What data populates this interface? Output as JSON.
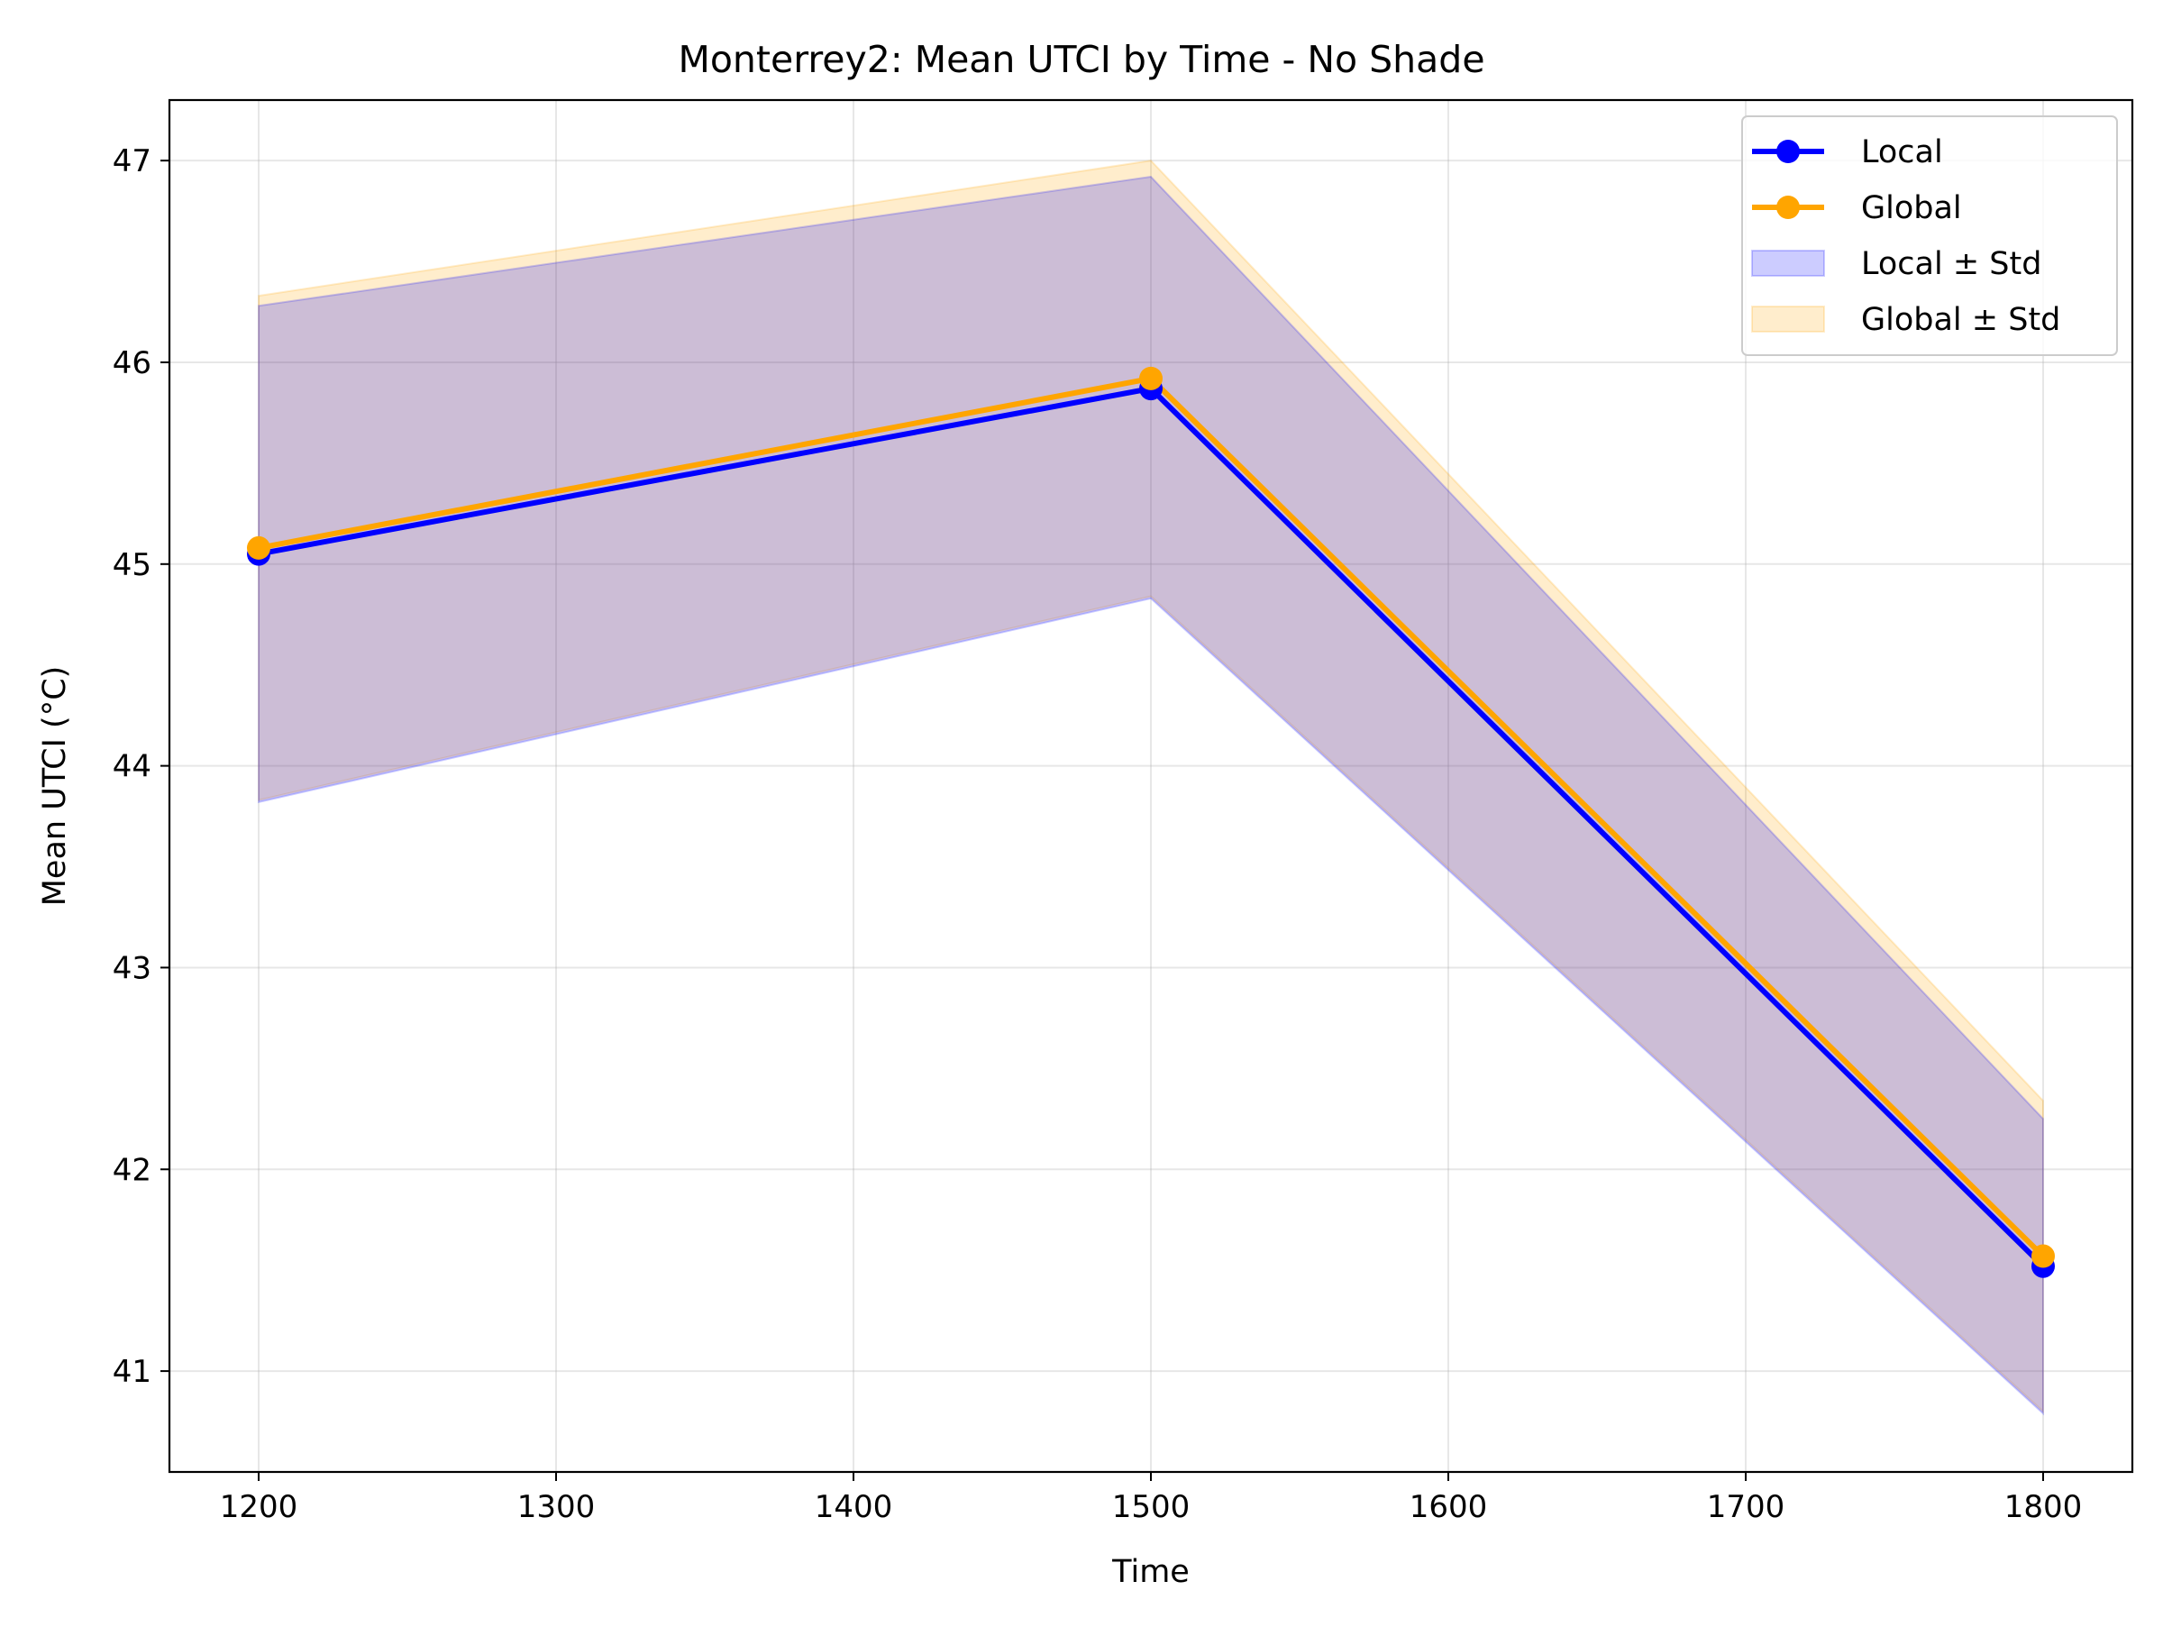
{
  "chart_data": {
    "type": "line",
    "title": "Monterrey2: Mean UTCI by Time - No Shade",
    "xlabel": "Time",
    "ylabel": "Mean UTCI (°C)",
    "x": [
      1200,
      1500,
      1800
    ],
    "xlim": [
      1170,
      1830
    ],
    "ylim": [
      40.5,
      47.3
    ],
    "xticks": [
      1200,
      1300,
      1400,
      1500,
      1600,
      1700,
      1800
    ],
    "yticks": [
      41,
      42,
      43,
      44,
      45,
      46,
      47
    ],
    "grid": true,
    "legend_position": "top-right",
    "series": [
      {
        "name": "Local",
        "color": "#0000ff",
        "values": [
          45.05,
          45.87,
          41.52
        ],
        "lower": [
          43.82,
          44.83,
          40.79
        ],
        "upper": [
          46.28,
          46.92,
          42.25
        ]
      },
      {
        "name": "Global",
        "color": "#ffa500",
        "values": [
          45.08,
          45.92,
          41.57
        ],
        "lower": [
          43.83,
          44.84,
          40.8
        ],
        "upper": [
          46.33,
          47.0,
          42.34
        ]
      }
    ],
    "bands": [
      {
        "name": "Local ± Std",
        "series": 0,
        "color": "#0000ff",
        "opacity": 0.2
      },
      {
        "name": "Global ± Std",
        "series": 1,
        "color": "#ffa500",
        "opacity": 0.2
      }
    ]
  }
}
